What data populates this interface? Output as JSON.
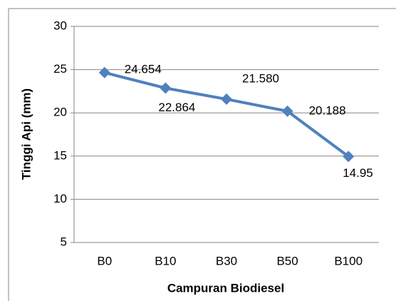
{
  "chart_data": {
    "type": "line",
    "x_label": "Campuran Biodiesel",
    "y_label": "Tinggi Api (mm)",
    "categories": [
      "B0",
      "B10",
      "B30",
      "B50",
      "B100"
    ],
    "series": [
      {
        "name": "Tinggi Api",
        "color": "#4f81bd",
        "values": [
          24.654,
          22.864,
          21.58,
          20.188,
          14.95
        ],
        "value_labels": [
          "24.654",
          "22.864",
          "21.580",
          "20.188",
          "14.95"
        ]
      }
    ],
    "ylim": [
      5,
      30
    ],
    "yticks": [
      5,
      10,
      15,
      20,
      25,
      30
    ],
    "grid": true,
    "marker": "diamond"
  }
}
